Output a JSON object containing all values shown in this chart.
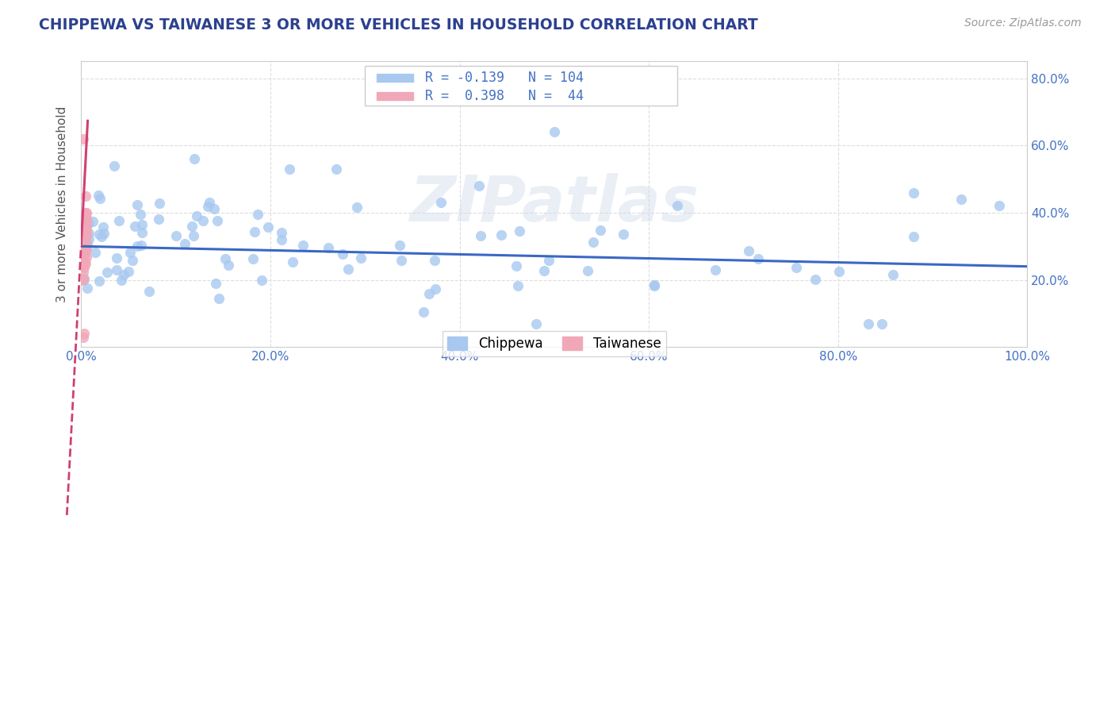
{
  "title": "CHIPPEWA VS TAIWANESE 3 OR MORE VEHICLES IN HOUSEHOLD CORRELATION CHART",
  "source": "Source: ZipAtlas.com",
  "ylabel": "3 or more Vehicles in Household",
  "watermark": "ZIPatlas",
  "chippewa_color": "#a8c8f0",
  "taiwanese_color": "#f0a8b8",
  "chippewa_edge_color": "#7aaee8",
  "taiwanese_edge_color": "#e888a8",
  "chippewa_line_color": "#3a68c4",
  "taiwanese_line_color": "#d04070",
  "chippewa_R": -0.139,
  "chippewa_N": 104,
  "taiwanese_R": 0.398,
  "taiwanese_N": 44,
  "xmin": 0.0,
  "xmax": 1.0,
  "ymin": 0.0,
  "ymax": 0.85,
  "x_ticks": [
    0.0,
    0.2,
    0.4,
    0.6,
    0.8,
    1.0
  ],
  "y_ticks": [
    0.2,
    0.4,
    0.6,
    0.8
  ],
  "title_color": "#2c4090",
  "axis_label_color": "#555555",
  "tick_label_color": "#4472c4",
  "stats_text_color": "#4472c4",
  "background_color": "#ffffff",
  "grid_color": "#dddddd",
  "legend_box_color": "#f0f0f8"
}
